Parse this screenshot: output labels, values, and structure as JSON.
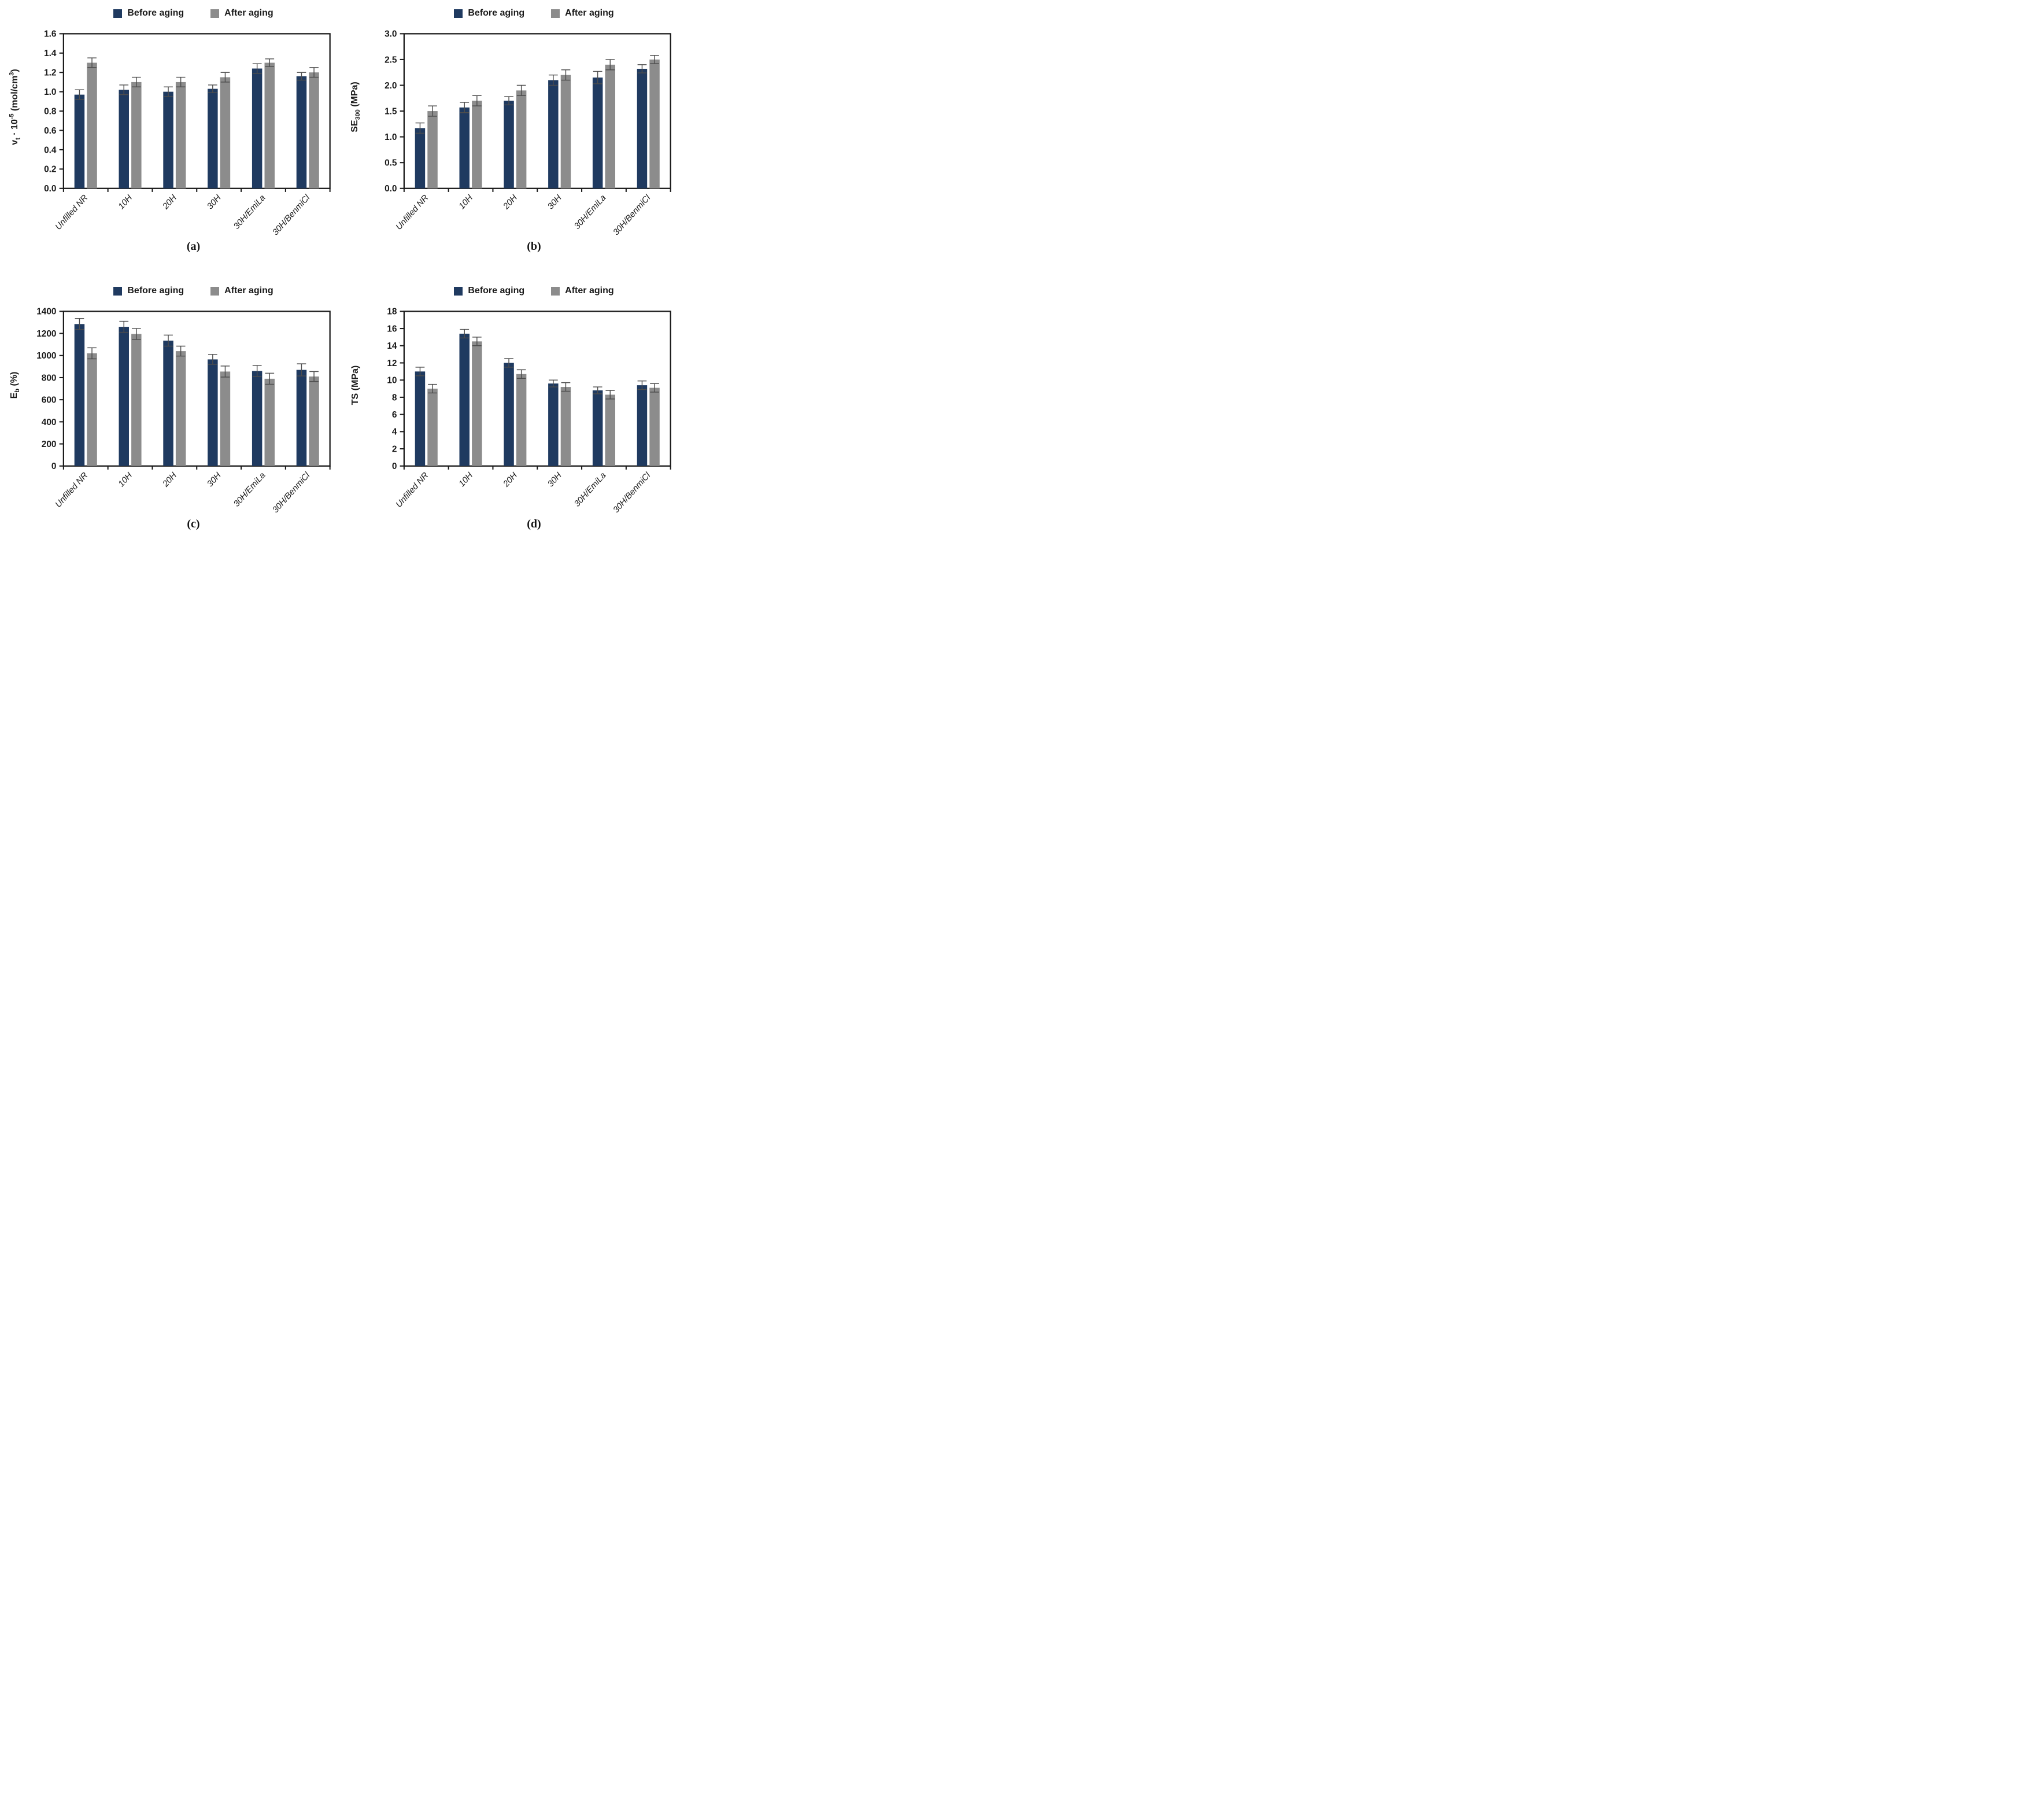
{
  "figure": {
    "legend": {
      "before_label": "Before aging",
      "after_label": "After aging"
    },
    "colors": {
      "before": "#1f3a60",
      "after": "#8c8c8c",
      "error": "#4d4d4d",
      "axis": "#1a1a1a",
      "text": "#1a1a1a"
    }
  },
  "chart_data": [
    {
      "type": "bar",
      "caption": "(a)",
      "ylabel_segments": [
        {
          "t": "v"
        },
        {
          "t": "t",
          "s": "sub"
        },
        {
          "t": " · 10"
        },
        {
          "t": "-5",
          "s": "sup"
        },
        {
          "t": " (mol/cm"
        },
        {
          "t": "3",
          "s": "sup"
        },
        {
          "t": ")"
        }
      ],
      "ylim": [
        0,
        1.6
      ],
      "ystep": 0.2,
      "ytick_labels": [
        "0.0",
        "0.2",
        "0.4",
        "0.6",
        "0.8",
        "1.0",
        "1.2",
        "1.4",
        "1.6"
      ],
      "categories": [
        "Unfilled NR",
        "10H",
        "20H",
        "30H",
        "30H/EmiLa",
        "30H/BenmiCl"
      ],
      "legend_position": "top",
      "grid": false,
      "series": [
        {
          "name": "Before aging",
          "values": [
            0.97,
            1.02,
            1.0,
            1.03,
            1.24,
            1.16
          ],
          "errors": [
            0.05,
            0.05,
            0.05,
            0.04,
            0.05,
            0.04
          ]
        },
        {
          "name": "After aging",
          "values": [
            1.3,
            1.1,
            1.1,
            1.15,
            1.3,
            1.2
          ],
          "errors": [
            0.05,
            0.05,
            0.05,
            0.05,
            0.04,
            0.05
          ]
        }
      ]
    },
    {
      "type": "bar",
      "caption": "(b)",
      "ylabel_segments": [
        {
          "t": "SE"
        },
        {
          "t": "300",
          "s": "sub"
        },
        {
          "t": " (MPa)"
        }
      ],
      "ylim": [
        0,
        3.0
      ],
      "ystep": 0.5,
      "ytick_labels": [
        "0.0",
        "0.5",
        "1.0",
        "1.5",
        "2.0",
        "2.5",
        "3.0"
      ],
      "categories": [
        "Unfilled NR",
        "10H",
        "20H",
        "30H",
        "30H/EmiLa",
        "30H/BenmiCl"
      ],
      "legend_position": "top",
      "grid": false,
      "series": [
        {
          "name": "Before aging",
          "values": [
            1.17,
            1.57,
            1.7,
            2.1,
            2.15,
            2.32
          ],
          "errors": [
            0.1,
            0.1,
            0.08,
            0.1,
            0.12,
            0.08
          ]
        },
        {
          "name": "After aging",
          "values": [
            1.5,
            1.7,
            1.9,
            2.2,
            2.4,
            2.5
          ],
          "errors": [
            0.1,
            0.1,
            0.1,
            0.1,
            0.1,
            0.08
          ]
        }
      ]
    },
    {
      "type": "bar",
      "caption": "(c)",
      "ylabel_segments": [
        {
          "t": "E"
        },
        {
          "t": "b",
          "s": "sub"
        },
        {
          "t": " (%)"
        }
      ],
      "ylim": [
        0,
        1400
      ],
      "ystep": 200,
      "ytick_labels": [
        "0",
        "200",
        "400",
        "600",
        "800",
        "1000",
        "1200",
        "1400"
      ],
      "categories": [
        "Unfilled NR",
        "10H",
        "20H",
        "30H",
        "30H/EmiLa",
        "30H/BenmiCl"
      ],
      "legend_position": "top",
      "grid": false,
      "series": [
        {
          "name": "Before aging",
          "values": [
            1285,
            1260,
            1135,
            965,
            860,
            870
          ],
          "errors": [
            50,
            50,
            50,
            45,
            50,
            55
          ]
        },
        {
          "name": "After aging",
          "values": [
            1020,
            1195,
            1040,
            855,
            790,
            810
          ],
          "errors": [
            50,
            50,
            45,
            50,
            50,
            45
          ]
        }
      ]
    },
    {
      "type": "bar",
      "caption": "(d)",
      "ylabel_segments": [
        {
          "t": "TS (MPa)"
        }
      ],
      "ylim": [
        0,
        18
      ],
      "ystep": 2,
      "ytick_labels": [
        "0",
        "2",
        "4",
        "6",
        "8",
        "10",
        "12",
        "14",
        "16",
        "18"
      ],
      "categories": [
        "Unfilled NR",
        "10H",
        "20H",
        "30H",
        "30H/EmiLa",
        "30H/BenmiCl"
      ],
      "legend_position": "top",
      "grid": false,
      "series": [
        {
          "name": "Before aging",
          "values": [
            11.0,
            15.4,
            12.0,
            9.6,
            8.8,
            9.4
          ],
          "errors": [
            0.5,
            0.5,
            0.5,
            0.4,
            0.4,
            0.5
          ]
        },
        {
          "name": "After aging",
          "values": [
            9.0,
            14.5,
            10.7,
            9.2,
            8.3,
            9.1
          ],
          "errors": [
            0.5,
            0.5,
            0.5,
            0.5,
            0.5,
            0.5
          ]
        }
      ]
    }
  ]
}
